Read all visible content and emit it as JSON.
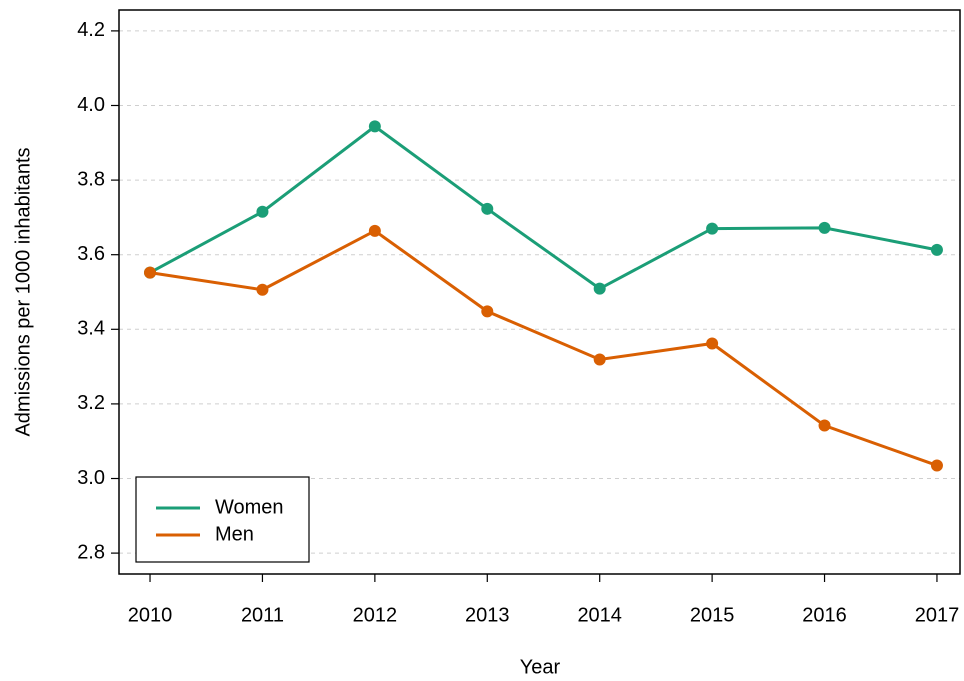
{
  "chart_data": {
    "type": "line",
    "x_label": "Year",
    "y_label": "Admissions per 1000 inhabitants",
    "x": [
      2010,
      2011,
      2012,
      2013,
      2014,
      2015,
      2016,
      2017
    ],
    "series": [
      {
        "name": "Women",
        "color": "#1b9e77",
        "values": [
          3.552,
          3.715,
          3.944,
          3.723,
          3.509,
          3.67,
          3.672,
          3.613
        ]
      },
      {
        "name": "Men",
        "color": "#d95f02",
        "values": [
          3.552,
          3.506,
          3.664,
          3.448,
          3.319,
          3.362,
          3.142,
          3.035
        ]
      }
    ],
    "xlim": [
      2009.724,
      2017.205
    ],
    "xticks": [
      2010,
      2011,
      2012,
      2013,
      2014,
      2015,
      2016,
      2017
    ],
    "ylim": [
      2.744,
      4.256
    ],
    "yticks": [
      2.8,
      {
        "value": 3,
        "label": "3.0"
      },
      3.2,
      3.4,
      3.6,
      3.8,
      {
        "value": 4,
        "label": "4.0"
      },
      4.2
    ],
    "grid": true,
    "legend": "bottom-left"
  }
}
